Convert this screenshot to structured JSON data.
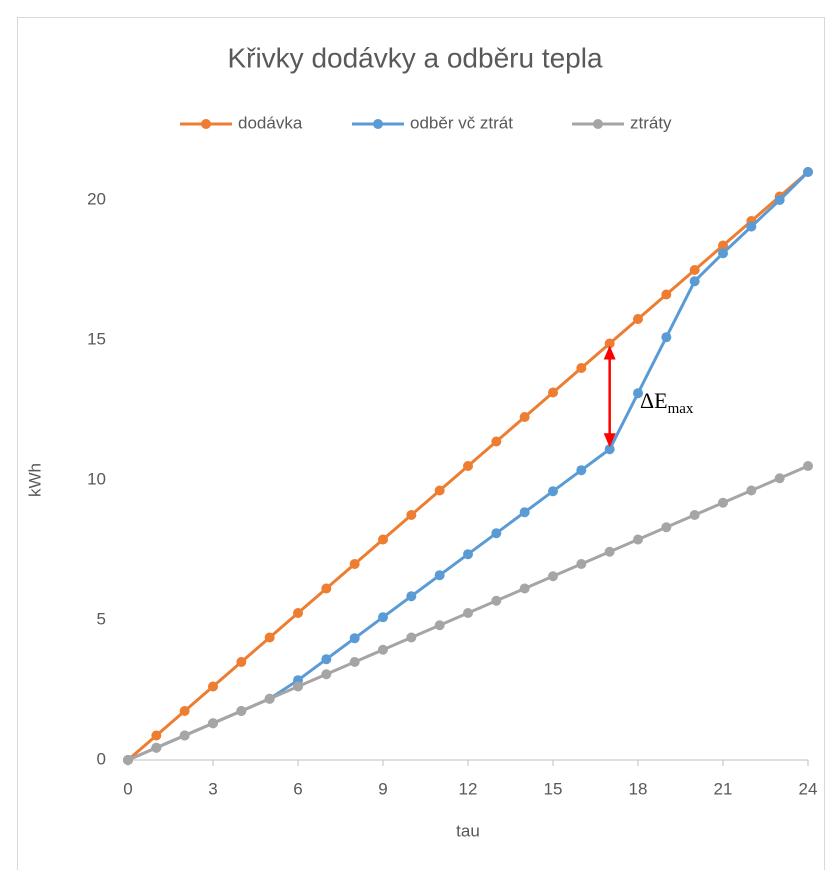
{
  "chart_data": {
    "type": "line",
    "title": "Křivky dodávky a odběru tepla",
    "xlabel": "tau",
    "ylabel": "kWh",
    "x": [
      0,
      1,
      2,
      3,
      4,
      5,
      6,
      7,
      8,
      9,
      10,
      11,
      12,
      13,
      14,
      15,
      16,
      17,
      18,
      19,
      20,
      21,
      22,
      23,
      24
    ],
    "series": [
      {
        "name": "dodávka",
        "color": "#ed7d31",
        "values": [
          0,
          0.875,
          1.75,
          2.625,
          3.5,
          4.375,
          5.25,
          6.125,
          7,
          7.875,
          8.75,
          9.625,
          10.5,
          11.375,
          12.25,
          13.125,
          14,
          14.875,
          15.75,
          16.625,
          17.5,
          18.375,
          19.25,
          20.125,
          21
        ]
      },
      {
        "name": "odběr vč ztrát",
        "color": "#5b9bd5",
        "values": [
          0,
          0.4375,
          0.875,
          1.3125,
          1.75,
          2.1875,
          2.85,
          3.6,
          4.35,
          5.1,
          5.85,
          6.6,
          7.35,
          8.1,
          8.85,
          9.6,
          10.35,
          11.1,
          13.1,
          15.1,
          17.1,
          18.1,
          19.05,
          20,
          21
        ]
      },
      {
        "name": "ztráty",
        "color": "#a5a5a5",
        "values": [
          0,
          0.4375,
          0.875,
          1.3125,
          1.75,
          2.1875,
          2.625,
          3.0625,
          3.5,
          3.9375,
          4.375,
          4.8125,
          5.25,
          5.6875,
          6.125,
          6.5625,
          7,
          7.4375,
          7.875,
          8.3125,
          8.75,
          9.1875,
          9.625,
          10.0625,
          10.5
        ]
      }
    ],
    "xlim": [
      0,
      24
    ],
    "xticks": [
      0,
      3,
      6,
      9,
      12,
      15,
      18,
      21,
      24
    ],
    "ylim": [
      0,
      21
    ],
    "yticks": [
      0,
      5,
      10,
      15,
      20
    ],
    "grid": false,
    "legend": "top",
    "annotation": {
      "text": "ΔE",
      "subscript": "max"
    },
    "arrow": {
      "x": 17,
      "from": 11.1,
      "to": 14.875,
      "color": "#ff0000"
    }
  }
}
